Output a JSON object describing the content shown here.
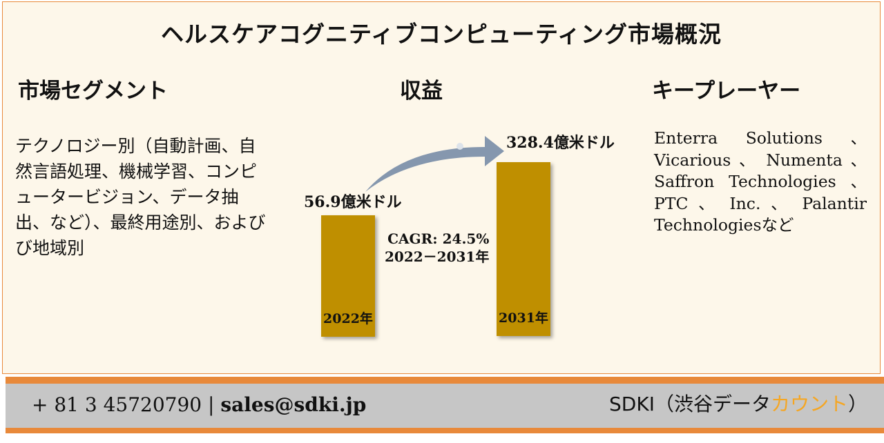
{
  "title": "ヘルスケアコグニティブコンピューティング市場概況",
  "segments": {
    "heading": "市場セグメント",
    "body": "テクノロジー別（自動計画、自然言語処理、機械学習、コンピュータービジョン、データ抽出、など）、最終用途別、およびび地域別"
  },
  "revenue": {
    "heading": "収益",
    "value_2022": "56.9億米ドル",
    "value_2031": "328.4億米ドル",
    "cagr": "CAGR: 24.5%",
    "period": "2022－2031年",
    "bar_2022_label": "2022年",
    "bar_2031_label": "2031年"
  },
  "chart_data": {
    "type": "bar",
    "categories": [
      "2022年",
      "2031年"
    ],
    "values": [
      56.9,
      328.4
    ],
    "value_labels": [
      "56.9億米ドル",
      "328.4億米ドル"
    ]
  },
  "key_players": {
    "heading": "キープレーヤー",
    "body": "Enterra Solutions 、 Vicarious 、 Numenta 、 Saffron Technologies 、 PTC 、 Inc. 、 Palantir Technologiesなど"
  },
  "footer": {
    "phone": "+ 81 3 45720790",
    "separator": "|",
    "email": "sales@sdki.jp",
    "brand_prefix": "SDKI（渋谷データ",
    "brand_accent": "カウント",
    "brand_suffix": "）"
  },
  "colors": {
    "bar": "#bf8f00",
    "accent": "#e8893a",
    "arrow": "#8597ae",
    "brand_accent": "#f5a623"
  }
}
